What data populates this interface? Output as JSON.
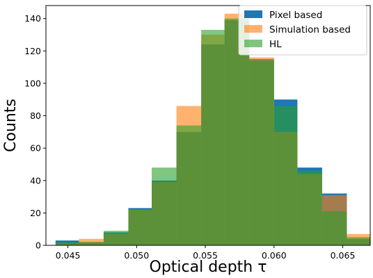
{
  "chart_data": {
    "type": "histogram",
    "xlabel": "Optical depth τ",
    "ylabel": "Counts",
    "xlim": [
      0.0434,
      0.067
    ],
    "ylim": [
      0,
      148
    ],
    "bin_edges": [
      0.0423,
      0.0441,
      0.0458,
      0.0476,
      0.0494,
      0.0511,
      0.0529,
      0.0547,
      0.0564,
      0.0582,
      0.06,
      0.0617,
      0.0635,
      0.0653,
      0.067
    ],
    "x_ticks": [
      0.045,
      0.05,
      0.055,
      0.06,
      0.065
    ],
    "x_tick_labels": [
      "0.045",
      "0.050",
      "0.055",
      "0.060",
      "0.065"
    ],
    "y_ticks": [
      0,
      20,
      40,
      60,
      80,
      100,
      120,
      140
    ],
    "y_tick_labels": [
      "0",
      "20",
      "40",
      "60",
      "80",
      "100",
      "120",
      "140"
    ],
    "legend_position": "top-right",
    "series": [
      {
        "name": "Pixel based",
        "color": "#1f77b4",
        "alpha": 1.0,
        "values": [
          0,
          3,
          2,
          8,
          23,
          40,
          70,
          124,
          139,
          115,
          90,
          48,
          32,
          4
        ]
      },
      {
        "name": "Simulation based",
        "color": "#ff7f0e",
        "alpha": 0.6,
        "values": [
          0,
          1,
          4,
          7,
          22,
          39,
          86,
          130,
          143,
          116,
          70,
          44,
          31,
          7
        ]
      },
      {
        "name": "HL",
        "color": "#2ca02c",
        "alpha": 0.6,
        "values": [
          0,
          2,
          2,
          9,
          22,
          48,
          74,
          133,
          140,
          114,
          86,
          46,
          21,
          5
        ]
      }
    ]
  }
}
